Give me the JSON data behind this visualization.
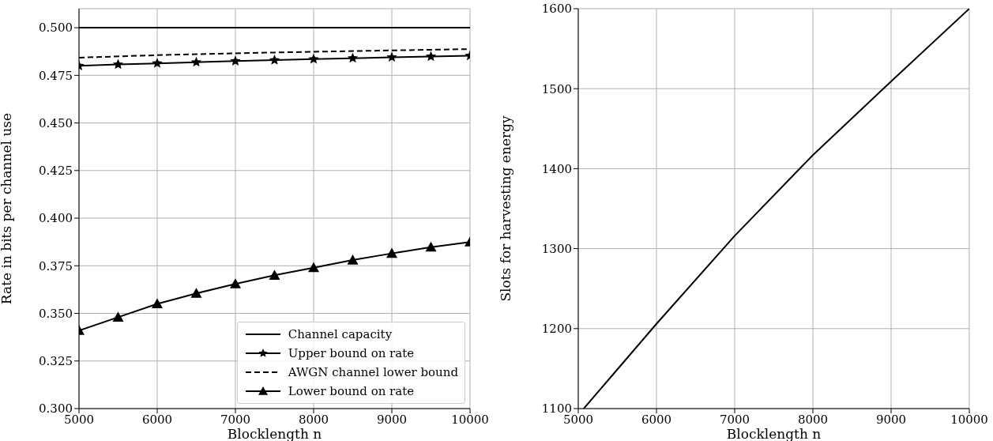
{
  "chart_data": [
    {
      "type": "line",
      "xlabel": "Blocklength n",
      "ylabel": "Rate in bits per channel use",
      "xlim": [
        5000,
        10000
      ],
      "xticks": [
        5000,
        6000,
        7000,
        8000,
        9000,
        10000
      ],
      "ylim": [
        0.3,
        0.51
      ],
      "yticks": [
        {
          "value": 0.3,
          "label": "0.300"
        },
        {
          "value": 0.325,
          "label": "0.325"
        },
        {
          "value": 0.35,
          "label": "0.350"
        },
        {
          "value": 0.375,
          "label": "0.375"
        },
        {
          "value": 0.4,
          "label": "0.400"
        },
        {
          "value": 0.425,
          "label": "0.425"
        },
        {
          "value": 0.45,
          "label": "0.450"
        },
        {
          "value": 0.475,
          "label": "0.475"
        },
        {
          "value": 0.5,
          "label": "0.500"
        }
      ],
      "grid": true,
      "legend": "bottom right",
      "series": [
        {
          "name": "Channel capacity",
          "color": "#000000",
          "marker": "none",
          "line_style": "solid",
          "x": [
            5000,
            10000
          ],
          "values": [
            0.5,
            0.5
          ]
        },
        {
          "name": "Upper bound on rate",
          "color": "#000000",
          "marker": "star",
          "line_style": "solid",
          "x": [
            5000,
            5500,
            6000,
            6500,
            7000,
            7500,
            8000,
            8500,
            9000,
            9500,
            10000
          ],
          "values": [
            0.48,
            0.4807,
            0.4813,
            0.4819,
            0.4825,
            0.483,
            0.4835,
            0.484,
            0.4845,
            0.4849,
            0.4853
          ]
        },
        {
          "name": "AWGN channel lower bound",
          "color": "#000000",
          "marker": "none",
          "line_style": "dashed",
          "x": [
            5000,
            6000,
            7000,
            8000,
            9000,
            10000
          ],
          "values": [
            0.4843,
            0.4856,
            0.4866,
            0.4874,
            0.4881,
            0.4888
          ]
        },
        {
          "name": "Lower bound on rate",
          "color": "#000000",
          "marker": "triangle",
          "line_style": "solid",
          "x": [
            5000,
            5500,
            6000,
            6500,
            7000,
            7500,
            8000,
            8500,
            9000,
            9500,
            10000
          ],
          "values": [
            0.341,
            0.348,
            0.355,
            0.3605,
            0.3655,
            0.37,
            0.374,
            0.378,
            0.3815,
            0.3848,
            0.3875
          ]
        }
      ]
    },
    {
      "type": "line",
      "xlabel": "Blocklength n",
      "ylabel": "Slots for harvesting energy",
      "xlim": [
        5000,
        10000
      ],
      "xticks": [
        5000,
        6000,
        7000,
        8000,
        9000,
        10000
      ],
      "ylim": [
        1100,
        1600
      ],
      "yticks": [
        1100,
        1200,
        1300,
        1400,
        1500,
        1600
      ],
      "grid": true,
      "series": [
        {
          "color": "#000000",
          "marker": "none",
          "line_style": "solid",
          "x": [
            5070,
            6000,
            7000,
            8000,
            9000,
            10000
          ],
          "values": [
            1100,
            1206,
            1316,
            1417,
            1509,
            1600
          ]
        }
      ]
    }
  ]
}
